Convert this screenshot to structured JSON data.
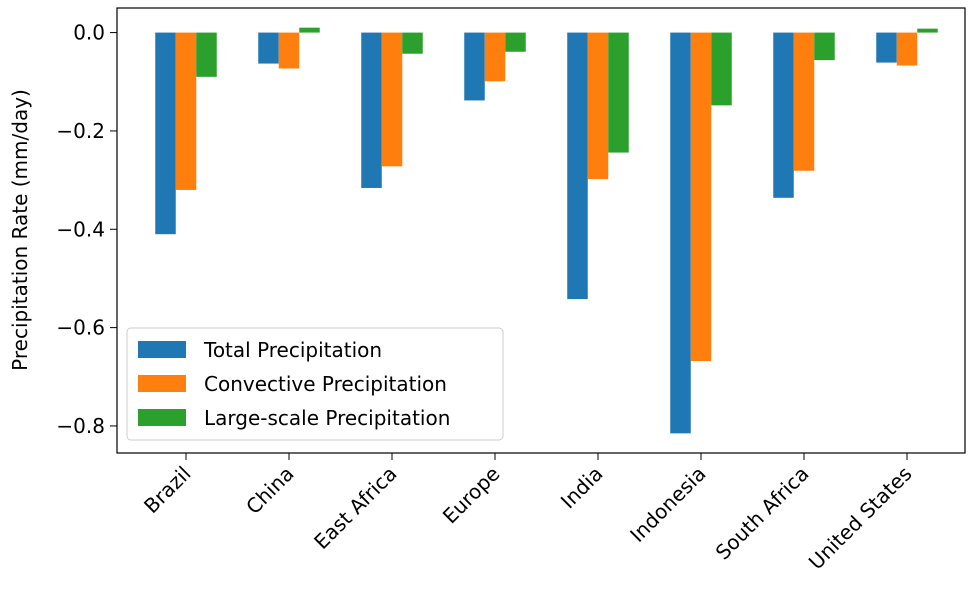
{
  "chart_data": {
    "type": "bar",
    "title": "",
    "xlabel": "",
    "ylabel": "Precipitation Rate (mm/day)",
    "categories": [
      "Brazil",
      "China",
      "East Africa",
      "Europe",
      "India",
      "Indonesia",
      "South Africa",
      "United States"
    ],
    "series": [
      {
        "name": "Total Precipitation",
        "color": "#1f77b4",
        "values": [
          -0.41,
          -0.063,
          -0.316,
          -0.138,
          -0.542,
          -0.815,
          -0.336,
          -0.061
        ]
      },
      {
        "name": "Convective Precipitation",
        "color": "#ff7f0e",
        "values": [
          -0.32,
          -0.073,
          -0.272,
          -0.099,
          -0.298,
          -0.668,
          -0.281,
          -0.067
        ]
      },
      {
        "name": "Large-scale Precipitation",
        "color": "#2ca02c",
        "values": [
          -0.09,
          0.01,
          -0.043,
          -0.039,
          -0.244,
          -0.148,
          -0.056,
          0.008
        ]
      }
    ],
    "ylim": [
      -0.855,
      0.05
    ],
    "yticks": [
      0.0,
      -0.2,
      -0.4,
      -0.6,
      -0.8
    ],
    "ytick_labels": [
      "0.0",
      "−0.2",
      "−0.4",
      "−0.6",
      "−0.8"
    ],
    "grid": false,
    "legend_position": "lower-left"
  }
}
